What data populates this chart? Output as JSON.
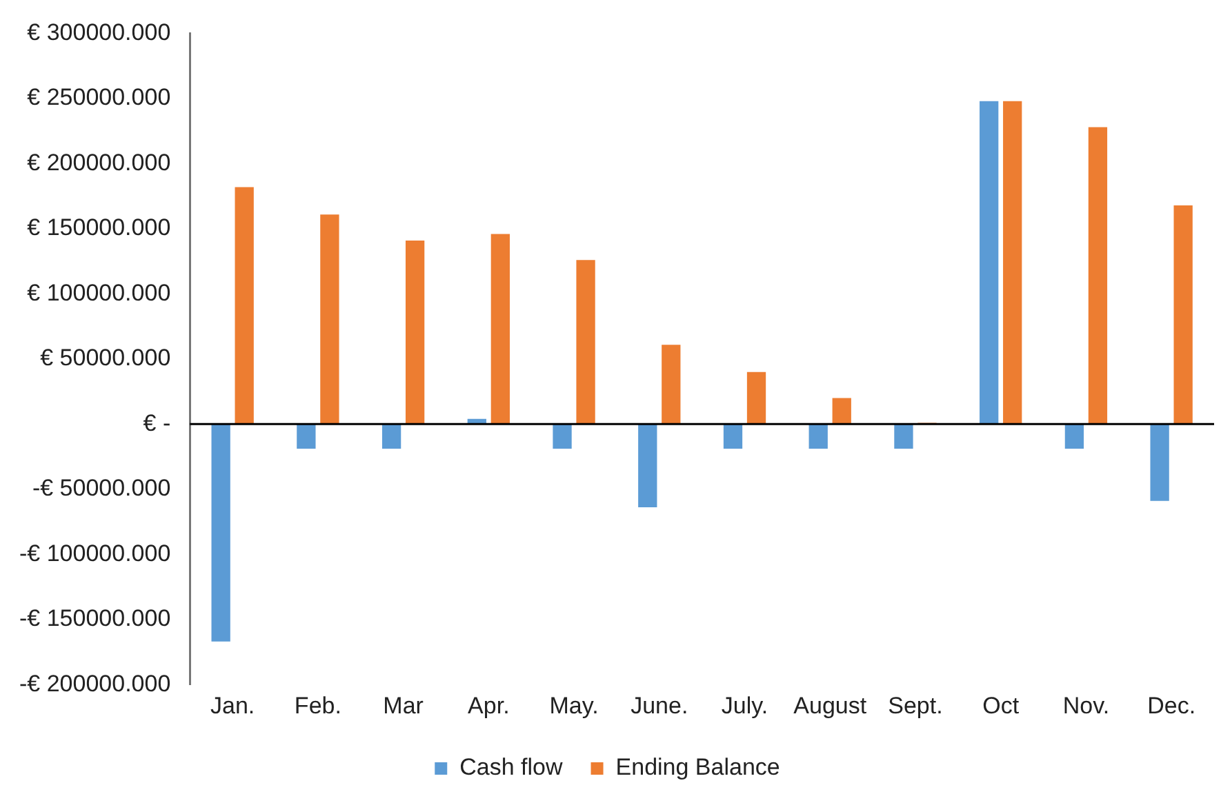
{
  "chart_data": {
    "type": "bar",
    "categories": [
      "Jan.",
      "Feb.",
      "Mar",
      "Apr.",
      "May.",
      "June.",
      "July.",
      "August",
      "Sept.",
      "Oct",
      "Nov.",
      "Dec."
    ],
    "series": [
      {
        "name": "Cash flow",
        "color": "#5b9bd5",
        "values": [
          -168000,
          -20000,
          -20000,
          5000,
          -20000,
          -65000,
          -20000,
          -20000,
          -20000,
          249000,
          -20000,
          -60000
        ]
      },
      {
        "name": "Ending Balance",
        "color": "#ed7d31",
        "values": [
          183000,
          162000,
          142000,
          147000,
          127000,
          62000,
          41000,
          21000,
          2000,
          249000,
          229000,
          169000
        ]
      }
    ],
    "ylim": [
      -200000,
      300000
    ],
    "yticks": [
      {
        "value": 300000,
        "label": "€ 300000.000"
      },
      {
        "value": 250000,
        "label": "€ 250000.000"
      },
      {
        "value": 200000,
        "label": "€ 200000.000"
      },
      {
        "value": 150000,
        "label": "€ 150000.000"
      },
      {
        "value": 100000,
        "label": "€ 100000.000"
      },
      {
        "value": 50000,
        "label": "€ 50000.000"
      },
      {
        "value": 0,
        "label": "€ -"
      },
      {
        "value": -50000,
        "label": "-€ 50000.000"
      },
      {
        "value": -100000,
        "label": "-€ 100000.000"
      },
      {
        "value": -150000,
        "label": "-€ 150000.000"
      },
      {
        "value": -200000,
        "label": "-€ 200000.000"
      }
    ],
    "ref_lines": [
      {
        "axis": "y",
        "value": 0,
        "color": "#000000"
      }
    ],
    "grid": false,
    "legend": "bottom"
  }
}
